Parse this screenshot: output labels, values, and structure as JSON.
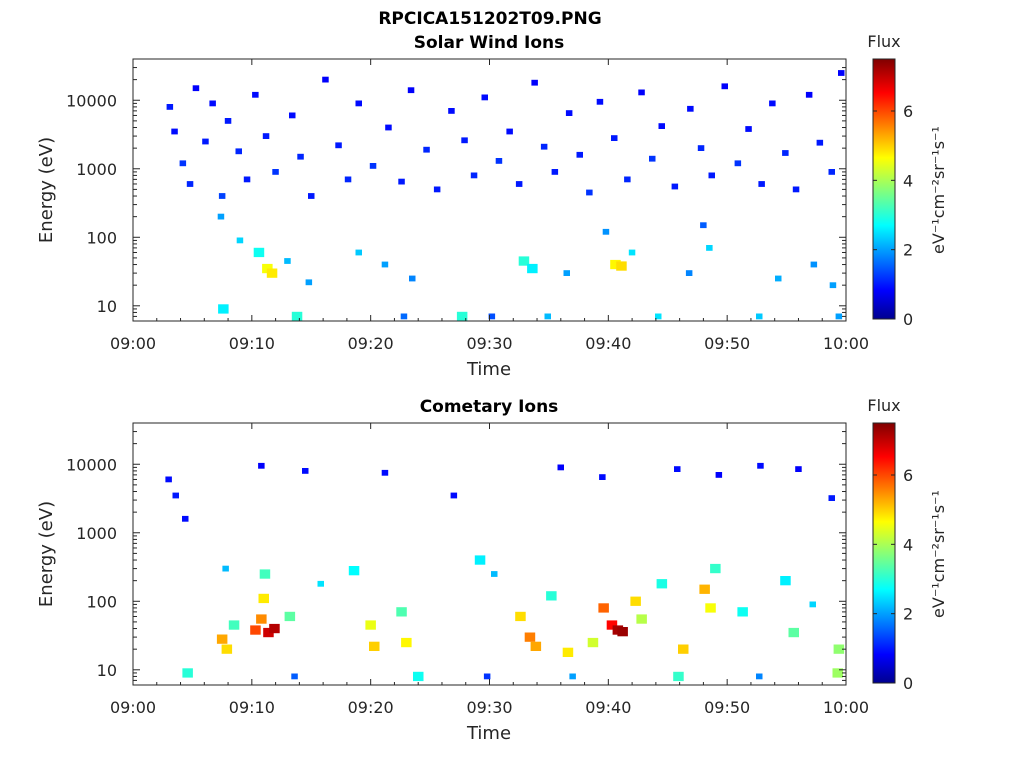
{
  "figure": {
    "title": "RPCICA151202T09.PNG"
  },
  "chart_data": [
    {
      "type": "heatmap",
      "title": "Solar Wind Ions",
      "xlabel": "Time",
      "ylabel": "Energy (eV)",
      "x_ticks": [
        "09:00",
        "09:10",
        "09:20",
        "09:30",
        "09:40",
        "09:50",
        "10:00"
      ],
      "x_range": [
        "09:00",
        "10:00"
      ],
      "y_ticks": [
        "10",
        "100",
        "1000",
        "10000"
      ],
      "y_range": [
        6,
        40000
      ],
      "y_scale": "log",
      "colorbar": {
        "title": "Flux",
        "unit": "eV⁻¹cm⁻²sr⁻¹s⁻¹",
        "ticks": [
          "0",
          "2",
          "4",
          "6"
        ],
        "range": [
          0,
          7.5
        ]
      },
      "cells": [
        {
          "t": 3.1,
          "e": 8000,
          "v": 1.0
        },
        {
          "t": 3.5,
          "e": 3500,
          "v": 0.9
        },
        {
          "t": 4.2,
          "e": 1200,
          "v": 1.2
        },
        {
          "t": 4.8,
          "e": 600,
          "v": 1.1
        },
        {
          "t": 5.3,
          "e": 15000,
          "v": 0.8
        },
        {
          "t": 6.1,
          "e": 2500,
          "v": 1.0
        },
        {
          "t": 6.7,
          "e": 9000,
          "v": 0.9
        },
        {
          "t": 7.5,
          "e": 400,
          "v": 1.3
        },
        {
          "t": 8.0,
          "e": 5000,
          "v": 1.0
        },
        {
          "t": 8.9,
          "e": 1800,
          "v": 1.1
        },
        {
          "t": 9.6,
          "e": 700,
          "v": 1.0
        },
        {
          "t": 10.3,
          "e": 12000,
          "v": 0.9
        },
        {
          "t": 11.2,
          "e": 3000,
          "v": 1.0
        },
        {
          "t": 12.0,
          "e": 900,
          "v": 1.2
        },
        {
          "t": 13.4,
          "e": 6000,
          "v": 0.9
        },
        {
          "t": 14.1,
          "e": 1500,
          "v": 1.1
        },
        {
          "t": 15.0,
          "e": 400,
          "v": 1.0
        },
        {
          "t": 16.2,
          "e": 20000,
          "v": 0.8
        },
        {
          "t": 17.3,
          "e": 2200,
          "v": 1.0
        },
        {
          "t": 18.1,
          "e": 700,
          "v": 1.1
        },
        {
          "t": 19.0,
          "e": 9000,
          "v": 0.9
        },
        {
          "t": 20.2,
          "e": 1100,
          "v": 1.2
        },
        {
          "t": 21.5,
          "e": 4000,
          "v": 0.9
        },
        {
          "t": 22.6,
          "e": 650,
          "v": 1.0
        },
        {
          "t": 23.4,
          "e": 14000,
          "v": 0.8
        },
        {
          "t": 24.7,
          "e": 1900,
          "v": 1.1
        },
        {
          "t": 25.6,
          "e": 500,
          "v": 1.0
        },
        {
          "t": 26.8,
          "e": 7000,
          "v": 0.9
        },
        {
          "t": 27.9,
          "e": 2600,
          "v": 1.0
        },
        {
          "t": 28.7,
          "e": 800,
          "v": 1.1
        },
        {
          "t": 29.6,
          "e": 11000,
          "v": 0.9
        },
        {
          "t": 30.8,
          "e": 1300,
          "v": 1.2
        },
        {
          "t": 31.7,
          "e": 3500,
          "v": 0.9
        },
        {
          "t": 32.5,
          "e": 600,
          "v": 1.0
        },
        {
          "t": 33.8,
          "e": 18000,
          "v": 0.8
        },
        {
          "t": 34.6,
          "e": 2100,
          "v": 1.1
        },
        {
          "t": 35.5,
          "e": 900,
          "v": 1.0
        },
        {
          "t": 36.7,
          "e": 6500,
          "v": 0.9
        },
        {
          "t": 37.6,
          "e": 1600,
          "v": 1.0
        },
        {
          "t": 38.4,
          "e": 450,
          "v": 1.2
        },
        {
          "t": 39.3,
          "e": 9500,
          "v": 0.9
        },
        {
          "t": 40.5,
          "e": 2800,
          "v": 1.0
        },
        {
          "t": 41.6,
          "e": 700,
          "v": 1.1
        },
        {
          "t": 42.8,
          "e": 13000,
          "v": 0.8
        },
        {
          "t": 43.7,
          "e": 1400,
          "v": 1.2
        },
        {
          "t": 44.5,
          "e": 4200,
          "v": 0.9
        },
        {
          "t": 45.6,
          "e": 550,
          "v": 1.0
        },
        {
          "t": 46.9,
          "e": 7500,
          "v": 0.9
        },
        {
          "t": 47.8,
          "e": 2000,
          "v": 1.1
        },
        {
          "t": 48.7,
          "e": 800,
          "v": 1.0
        },
        {
          "t": 49.8,
          "e": 16000,
          "v": 0.8
        },
        {
          "t": 50.9,
          "e": 1200,
          "v": 1.2
        },
        {
          "t": 51.8,
          "e": 3800,
          "v": 0.9
        },
        {
          "t": 52.9,
          "e": 600,
          "v": 1.0
        },
        {
          "t": 53.8,
          "e": 9000,
          "v": 0.9
        },
        {
          "t": 54.9,
          "e": 1700,
          "v": 1.1
        },
        {
          "t": 55.8,
          "e": 500,
          "v": 1.0
        },
        {
          "t": 56.9,
          "e": 12000,
          "v": 0.8
        },
        {
          "t": 57.8,
          "e": 2400,
          "v": 1.0
        },
        {
          "t": 58.8,
          "e": 900,
          "v": 1.1
        },
        {
          "t": 59.6,
          "e": 25000,
          "v": 0.8
        },
        {
          "t": 7.4,
          "e": 200,
          "v": 2.0
        },
        {
          "t": 9.0,
          "e": 90,
          "v": 2.4
        },
        {
          "t": 10.6,
          "e": 60,
          "v": 2.8
        },
        {
          "t": 11.3,
          "e": 35,
          "v": 4.6
        },
        {
          "t": 11.7,
          "e": 30,
          "v": 4.8
        },
        {
          "t": 13.0,
          "e": 45,
          "v": 2.2
        },
        {
          "t": 14.8,
          "e": 22,
          "v": 2.0
        },
        {
          "t": 19.0,
          "e": 60,
          "v": 2.3
        },
        {
          "t": 21.2,
          "e": 40,
          "v": 2.0
        },
        {
          "t": 23.5,
          "e": 25,
          "v": 1.8
        },
        {
          "t": 32.9,
          "e": 45,
          "v": 3.0
        },
        {
          "t": 33.6,
          "e": 35,
          "v": 2.6
        },
        {
          "t": 36.5,
          "e": 30,
          "v": 2.0
        },
        {
          "t": 39.8,
          "e": 120,
          "v": 1.9
        },
        {
          "t": 40.6,
          "e": 40,
          "v": 4.7
        },
        {
          "t": 41.1,
          "e": 38,
          "v": 4.9
        },
        {
          "t": 42.0,
          "e": 60,
          "v": 2.5
        },
        {
          "t": 46.8,
          "e": 30,
          "v": 1.8
        },
        {
          "t": 48.0,
          "e": 150,
          "v": 1.5
        },
        {
          "t": 48.5,
          "e": 70,
          "v": 2.4
        },
        {
          "t": 54.3,
          "e": 25,
          "v": 2.1
        },
        {
          "t": 57.3,
          "e": 40,
          "v": 1.9
        },
        {
          "t": 58.9,
          "e": 20,
          "v": 2.0
        },
        {
          "t": 7.6,
          "e": 9,
          "v": 2.6
        },
        {
          "t": 13.8,
          "e": 7,
          "v": 3.0
        },
        {
          "t": 22.8,
          "e": 7,
          "v": 1.6
        },
        {
          "t": 27.7,
          "e": 7,
          "v": 3.0
        },
        {
          "t": 30.2,
          "e": 7,
          "v": 1.4
        },
        {
          "t": 34.9,
          "e": 7,
          "v": 2.2
        },
        {
          "t": 44.2,
          "e": 7,
          "v": 2.5
        },
        {
          "t": 52.7,
          "e": 7,
          "v": 2.3
        },
        {
          "t": 59.4,
          "e": 7,
          "v": 2.0
        }
      ]
    },
    {
      "type": "heatmap",
      "title": "Cometary Ions",
      "xlabel": "Time",
      "ylabel": "Energy (eV)",
      "x_ticks": [
        "09:00",
        "09:10",
        "09:20",
        "09:30",
        "09:40",
        "09:50",
        "10:00"
      ],
      "x_range": [
        "09:00",
        "10:00"
      ],
      "y_ticks": [
        "10",
        "100",
        "1000",
        "10000"
      ],
      "y_range": [
        6,
        40000
      ],
      "y_scale": "log",
      "colorbar": {
        "title": "Flux",
        "unit": "eV⁻¹cm⁻²sr⁻¹s⁻¹",
        "ticks": [
          "0",
          "2",
          "4",
          "6"
        ],
        "range": [
          0,
          7.5
        ]
      },
      "cells": [
        {
          "t": 3.0,
          "e": 6000,
          "v": 0.9
        },
        {
          "t": 3.6,
          "e": 3500,
          "v": 1.0
        },
        {
          "t": 4.4,
          "e": 1600,
          "v": 0.9
        },
        {
          "t": 10.8,
          "e": 9500,
          "v": 0.8
        },
        {
          "t": 14.5,
          "e": 8000,
          "v": 0.9
        },
        {
          "t": 21.2,
          "e": 7500,
          "v": 0.9
        },
        {
          "t": 27.0,
          "e": 3500,
          "v": 0.9
        },
        {
          "t": 36.0,
          "e": 9000,
          "v": 0.8
        },
        {
          "t": 39.5,
          "e": 6500,
          "v": 0.9
        },
        {
          "t": 45.8,
          "e": 8500,
          "v": 0.9
        },
        {
          "t": 49.3,
          "e": 7000,
          "v": 0.8
        },
        {
          "t": 52.8,
          "e": 9500,
          "v": 0.9
        },
        {
          "t": 56.0,
          "e": 8500,
          "v": 0.8
        },
        {
          "t": 58.8,
          "e": 3200,
          "v": 1.0
        },
        {
          "t": 7.5,
          "e": 28,
          "v": 5.3
        },
        {
          "t": 7.9,
          "e": 20,
          "v": 4.9
        },
        {
          "t": 8.5,
          "e": 45,
          "v": 3.2
        },
        {
          "t": 7.8,
          "e": 300,
          "v": 2.2
        },
        {
          "t": 10.3,
          "e": 38,
          "v": 6.0
        },
        {
          "t": 10.8,
          "e": 55,
          "v": 5.5
        },
        {
          "t": 11.4,
          "e": 35,
          "v": 6.9
        },
        {
          "t": 11.9,
          "e": 40,
          "v": 7.1
        },
        {
          "t": 11.0,
          "e": 110,
          "v": 4.8
        },
        {
          "t": 11.1,
          "e": 250,
          "v": 3.2
        },
        {
          "t": 13.2,
          "e": 60,
          "v": 3.4
        },
        {
          "t": 15.8,
          "e": 180,
          "v": 2.5
        },
        {
          "t": 18.6,
          "e": 280,
          "v": 2.7
        },
        {
          "t": 20.3,
          "e": 22,
          "v": 5.0
        },
        {
          "t": 20.0,
          "e": 45,
          "v": 4.5
        },
        {
          "t": 23.0,
          "e": 25,
          "v": 4.7
        },
        {
          "t": 22.6,
          "e": 70,
          "v": 3.3
        },
        {
          "t": 29.2,
          "e": 400,
          "v": 2.6
        },
        {
          "t": 30.4,
          "e": 250,
          "v": 2.2
        },
        {
          "t": 32.6,
          "e": 60,
          "v": 4.9
        },
        {
          "t": 33.4,
          "e": 30,
          "v": 5.6
        },
        {
          "t": 33.9,
          "e": 22,
          "v": 5.3
        },
        {
          "t": 35.2,
          "e": 120,
          "v": 3.0
        },
        {
          "t": 36.6,
          "e": 18,
          "v": 4.8
        },
        {
          "t": 38.7,
          "e": 25,
          "v": 4.3
        },
        {
          "t": 39.6,
          "e": 80,
          "v": 5.8
        },
        {
          "t": 40.3,
          "e": 45,
          "v": 6.5
        },
        {
          "t": 40.8,
          "e": 38,
          "v": 7.2
        },
        {
          "t": 41.2,
          "e": 36,
          "v": 7.3
        },
        {
          "t": 42.3,
          "e": 100,
          "v": 4.9
        },
        {
          "t": 42.8,
          "e": 55,
          "v": 4.1
        },
        {
          "t": 44.5,
          "e": 180,
          "v": 2.9
        },
        {
          "t": 46.3,
          "e": 20,
          "v": 5.0
        },
        {
          "t": 48.1,
          "e": 150,
          "v": 5.2
        },
        {
          "t": 48.6,
          "e": 80,
          "v": 4.6
        },
        {
          "t": 49.0,
          "e": 300,
          "v": 3.1
        },
        {
          "t": 51.3,
          "e": 70,
          "v": 2.8
        },
        {
          "t": 54.9,
          "e": 200,
          "v": 2.6
        },
        {
          "t": 55.6,
          "e": 35,
          "v": 3.4
        },
        {
          "t": 57.2,
          "e": 90,
          "v": 2.4
        },
        {
          "t": 59.4,
          "e": 20,
          "v": 3.8
        },
        {
          "t": 4.6,
          "e": 9,
          "v": 3.0
        },
        {
          "t": 13.6,
          "e": 8,
          "v": 1.5
        },
        {
          "t": 24.0,
          "e": 8,
          "v": 2.8
        },
        {
          "t": 29.8,
          "e": 8,
          "v": 1.2
        },
        {
          "t": 37.0,
          "e": 8,
          "v": 2.0
        },
        {
          "t": 45.9,
          "e": 8,
          "v": 3.1
        },
        {
          "t": 52.7,
          "e": 8,
          "v": 1.8
        },
        {
          "t": 59.3,
          "e": 9,
          "v": 3.9
        }
      ]
    }
  ]
}
